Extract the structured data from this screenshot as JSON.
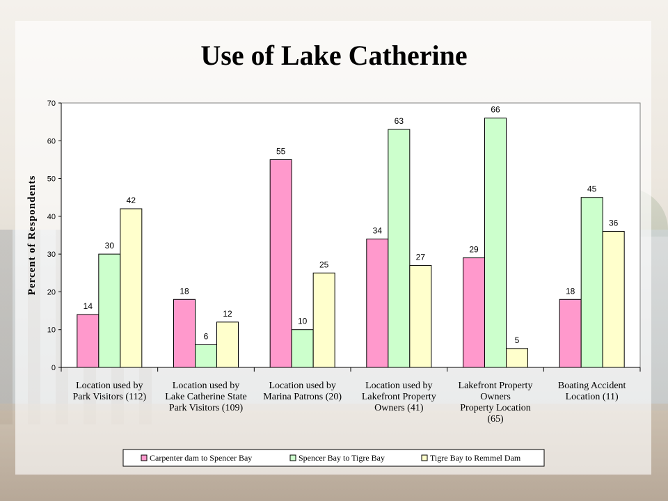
{
  "slide": {
    "title": "Use of Lake Catherine"
  },
  "chart_data": {
    "type": "bar",
    "ylabel": "Percent of Respondents",
    "ylim": [
      0,
      70
    ],
    "yticks": [
      0,
      10,
      20,
      30,
      40,
      50,
      60,
      70
    ],
    "categories": [
      [
        "Location used by",
        "Park Visitors (112)"
      ],
      [
        "Location used by",
        "Lake Catherine State",
        "Park Visitors (109)"
      ],
      [
        "Location used by",
        "Marina Patrons (20)"
      ],
      [
        "Location used by",
        "Lakefront Property",
        "Owners (41)"
      ],
      [
        "Lakefront Property",
        "Owners",
        "Property Location",
        "(65)"
      ],
      [
        "Boating Accident",
        "Location (11)"
      ]
    ],
    "series": [
      {
        "name": "Carpenter dam to Spencer Bay",
        "color": "#ff99cc",
        "values": [
          14,
          18,
          55,
          34,
          29,
          18
        ]
      },
      {
        "name": "Spencer Bay to Tigre Bay",
        "color": "#ccffcc",
        "values": [
          30,
          6,
          10,
          63,
          66,
          45
        ]
      },
      {
        "name": "Tigre Bay to Remmel Dam",
        "color": "#ffffcc",
        "values": [
          42,
          12,
          25,
          27,
          5,
          36
        ]
      }
    ],
    "legend_position": "bottom",
    "grid": false
  }
}
